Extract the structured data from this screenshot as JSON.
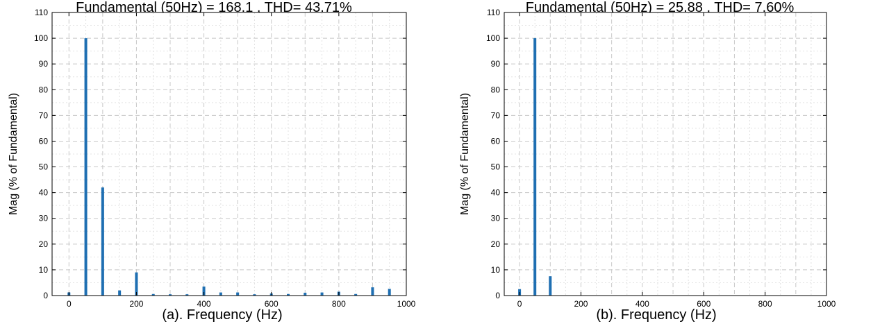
{
  "chart_data": [
    {
      "type": "bar",
      "title": "Fundamental (50Hz) = 168.1 , THD= 43.71%",
      "xlabel": "(a). Frequency (Hz)",
      "ylabel": "Mag (% of Fundamental)",
      "xlim": [
        -50,
        1000
      ],
      "ylim": [
        0,
        110
      ],
      "xticks": [
        0,
        200,
        400,
        600,
        800,
        1000
      ],
      "yticks": [
        0,
        10,
        20,
        30,
        40,
        50,
        60,
        70,
        80,
        90,
        100,
        110
      ],
      "grid": true,
      "bar_color": "#1f6fb2",
      "x": [
        0,
        50,
        100,
        150,
        200,
        250,
        300,
        350,
        400,
        450,
        500,
        550,
        600,
        650,
        700,
        750,
        800,
        850,
        900,
        950
      ],
      "values": [
        1.2,
        100,
        42,
        2,
        9,
        0.6,
        0.5,
        0.5,
        3.5,
        1.2,
        1.2,
        0.5,
        0.8,
        0.6,
        1.1,
        1.2,
        1.5,
        0.6,
        3.2,
        2.6
      ]
    },
    {
      "type": "bar",
      "title": "Fundamental (50Hz) = 25.88 , THD= 7.60%",
      "xlabel": "(b). Frequency (Hz)",
      "ylabel": "Mag (% of Fundamental)",
      "xlim": [
        -50,
        1000
      ],
      "ylim": [
        0,
        110
      ],
      "xticks": [
        0,
        200,
        400,
        600,
        800,
        1000
      ],
      "yticks": [
        0,
        10,
        20,
        30,
        40,
        50,
        60,
        70,
        80,
        90,
        100,
        110
      ],
      "grid": true,
      "bar_color": "#1f6fb2",
      "x": [
        0,
        50,
        100
      ],
      "values": [
        2.5,
        100,
        7.5
      ]
    }
  ]
}
